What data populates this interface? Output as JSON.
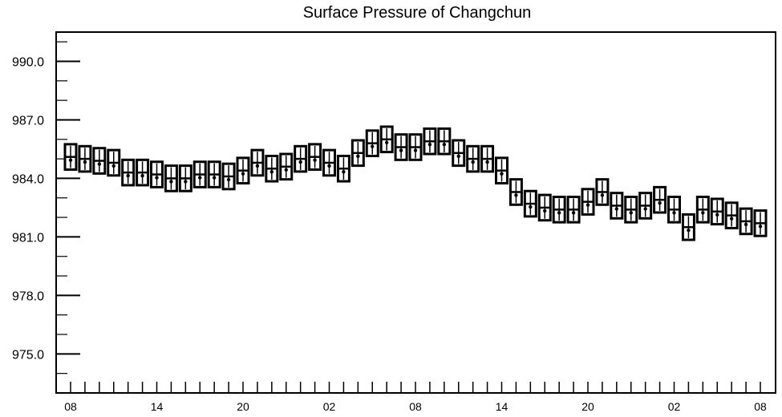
{
  "chart_data": {
    "type": "box",
    "title": "Surface Pressure of Changchun",
    "xlabel": "",
    "ylabel": "",
    "ylim": [
      973.0,
      991.5
    ],
    "yticks": [
      975.0,
      978.0,
      981.0,
      984.0,
      987.0,
      990.0
    ],
    "ytick_labels": [
      "975.0",
      "978.0",
      "981.0",
      "984.0",
      "987.0",
      "990.0"
    ],
    "yminor_step": 1.0,
    "x_count": 49,
    "xtick_labels": [
      {
        "index": 0,
        "label": "08"
      },
      {
        "index": 6,
        "label": "14"
      },
      {
        "index": 12,
        "label": "20"
      },
      {
        "index": 18,
        "label": "02"
      },
      {
        "index": 24,
        "label": "08"
      },
      {
        "index": 30,
        "label": "14"
      },
      {
        "index": 36,
        "label": "20"
      },
      {
        "index": 42,
        "label": "02"
      },
      {
        "index": 48,
        "label": "08"
      }
    ],
    "values": [
      985.1,
      985.0,
      984.9,
      984.8,
      984.3,
      984.3,
      984.2,
      984.0,
      984.0,
      984.2,
      984.2,
      984.1,
      984.4,
      984.8,
      984.5,
      984.6,
      985.0,
      985.1,
      984.8,
      984.5,
      985.3,
      985.8,
      986.0,
      985.6,
      985.6,
      985.9,
      985.9,
      985.3,
      985.0,
      985.0,
      984.4,
      983.3,
      982.7,
      982.5,
      982.4,
      982.4,
      982.8,
      983.3,
      982.6,
      982.4,
      982.6,
      982.9,
      982.4,
      981.5,
      982.4,
      982.3,
      982.1,
      981.8,
      981.7
    ],
    "box_half_range": 0.65,
    "series_color": "#000000"
  }
}
